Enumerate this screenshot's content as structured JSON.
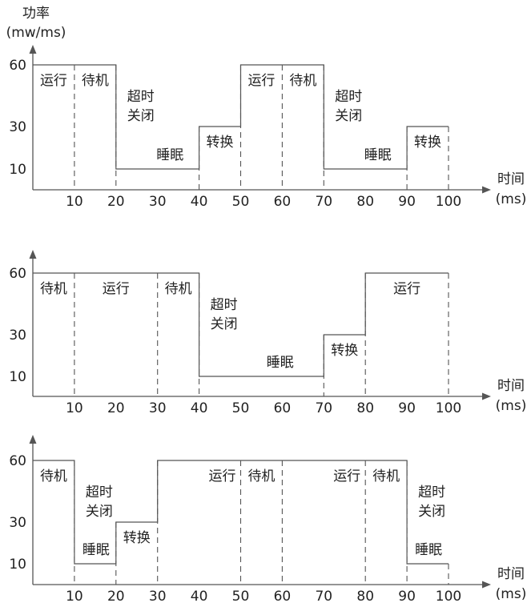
{
  "y_axis": {
    "title": "功率",
    "unit": "(mw/ms)"
  },
  "x_axis": {
    "title": "时间",
    "unit": "(ms)"
  },
  "diagrams": [
    {
      "y_ticks": [
        60,
        30,
        10
      ],
      "x_ticks": [
        10,
        20,
        30,
        40,
        50,
        60,
        70,
        80,
        90,
        100
      ],
      "segments": [
        {
          "start": 0,
          "end": 10,
          "level": 60,
          "label": "运行"
        },
        {
          "start": 10,
          "end": 20,
          "level": 60,
          "label": "待机"
        },
        {
          "start": 20,
          "end": 40,
          "level": 10,
          "label": "超时\n关闭",
          "label2": "睡眠"
        },
        {
          "start": 40,
          "end": 50,
          "level": 30,
          "label": "转换"
        },
        {
          "start": 50,
          "end": 60,
          "level": 60,
          "label": "运行"
        },
        {
          "start": 60,
          "end": 70,
          "level": 60,
          "label": "待机"
        },
        {
          "start": 70,
          "end": 90,
          "level": 10,
          "label": "超时\n关闭",
          "label2": "睡眠"
        },
        {
          "start": 90,
          "end": 100,
          "level": 30,
          "label": "转换"
        }
      ]
    },
    {
      "y_ticks": [
        60,
        30,
        10
      ],
      "x_ticks": [
        10,
        20,
        30,
        40,
        50,
        60,
        70,
        80,
        90,
        100
      ],
      "segments": [
        {
          "start": 0,
          "end": 10,
          "level": 60,
          "label": "待机"
        },
        {
          "start": 10,
          "end": 30,
          "level": 60,
          "label": "运行"
        },
        {
          "start": 30,
          "end": 40,
          "level": 60,
          "label": "待机"
        },
        {
          "start": 40,
          "end": 70,
          "level": 10,
          "label": "超时\n关闭",
          "label2": "睡眠"
        },
        {
          "start": 70,
          "end": 80,
          "level": 30,
          "label": "转换"
        },
        {
          "start": 80,
          "end": 100,
          "level": 60,
          "label": "运行"
        }
      ]
    },
    {
      "y_ticks": [
        60,
        30,
        10
      ],
      "x_ticks": [
        10,
        20,
        30,
        40,
        50,
        60,
        70,
        80,
        90,
        100
      ],
      "segments": [
        {
          "start": 0,
          "end": 10,
          "level": 60,
          "label": "待机"
        },
        {
          "start": 10,
          "end": 20,
          "level": 10,
          "label": "超时\n关闭",
          "label2": "睡眠"
        },
        {
          "start": 20,
          "end": 30,
          "level": 30,
          "label": "转换"
        },
        {
          "start": 30,
          "end": 50,
          "level": 60,
          "label": "运行"
        },
        {
          "start": 50,
          "end": 60,
          "level": 60,
          "label": "待机"
        },
        {
          "start": 60,
          "end": 80,
          "level": 60,
          "label": "运行"
        },
        {
          "start": 80,
          "end": 90,
          "level": 60,
          "label": "待机"
        },
        {
          "start": 90,
          "end": 100,
          "level": 10,
          "label": "超时\n关闭",
          "label2": "睡眠"
        }
      ]
    }
  ]
}
